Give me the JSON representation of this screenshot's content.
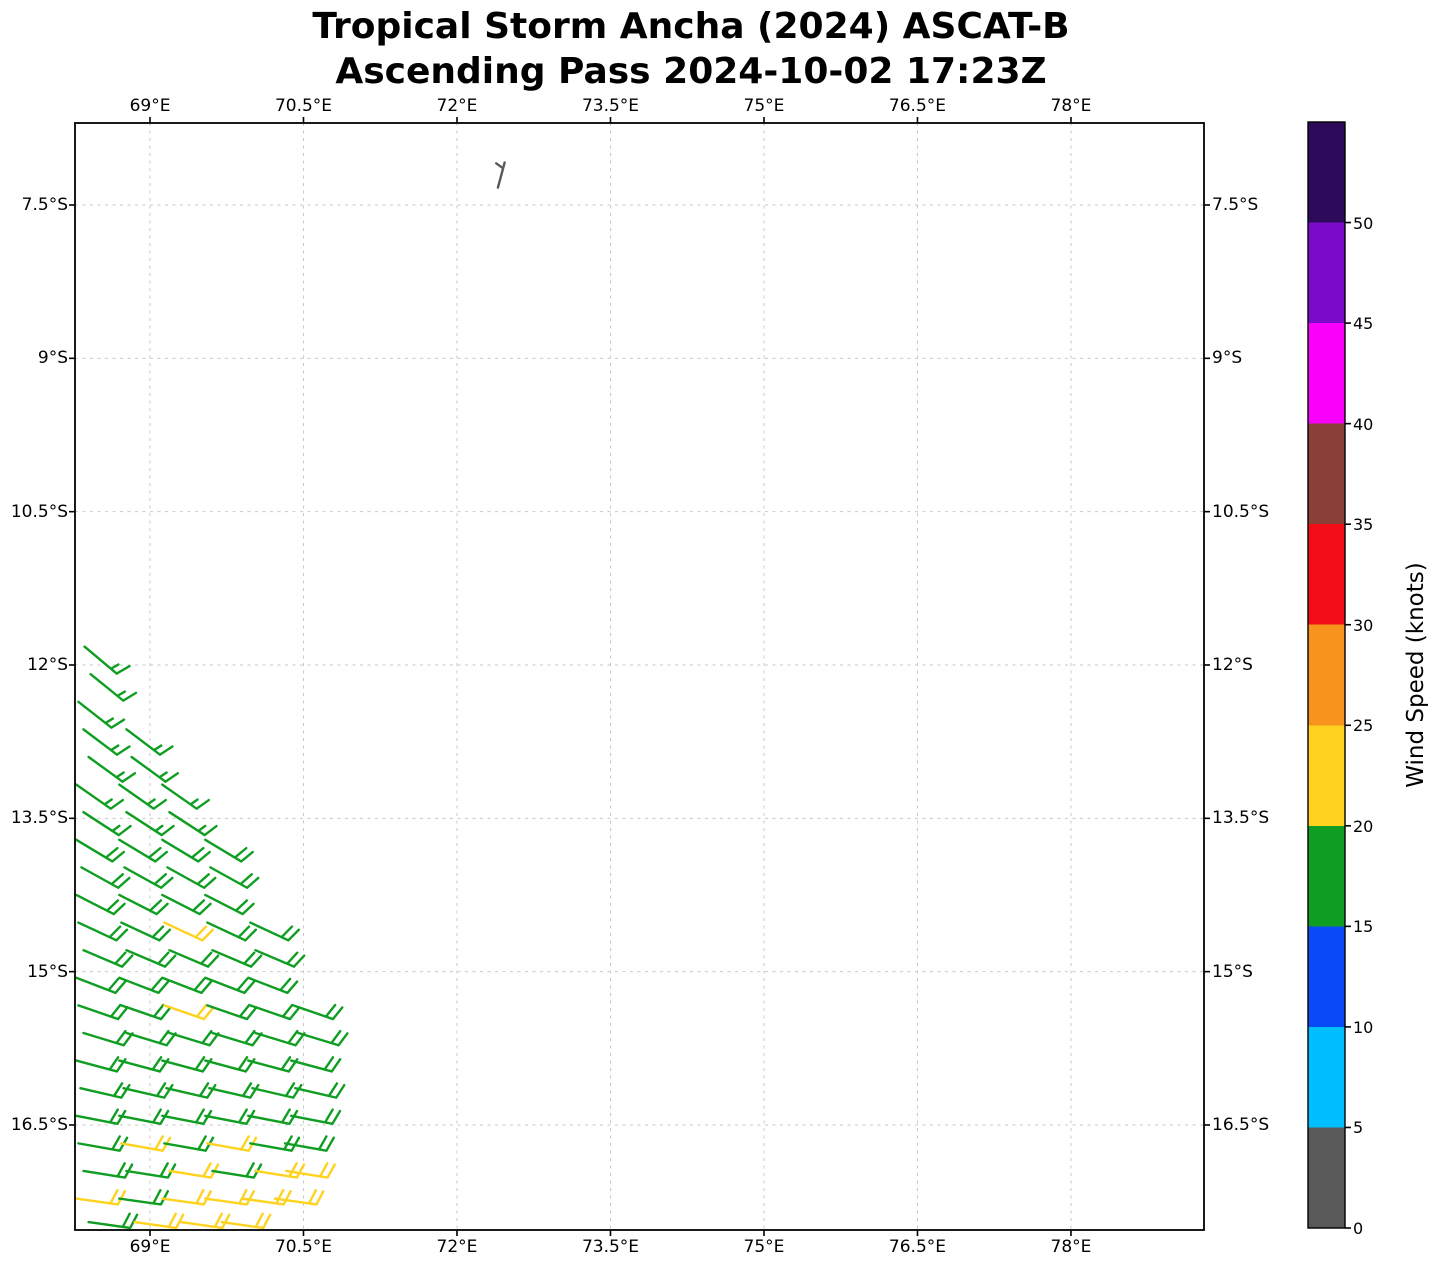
{
  "title": {
    "line1": "Tropical Storm Ancha (2024) ASCAT-B",
    "line2": "Ascending Pass 2024-10-02 17:23Z"
  },
  "axes": {
    "lon_ticks": [
      {
        "label": "69°E",
        "value": 69.0
      },
      {
        "label": "70.5°E",
        "value": 70.5
      },
      {
        "label": "72°E",
        "value": 72.0
      },
      {
        "label": "73.5°E",
        "value": 73.5
      },
      {
        "label": "75°E",
        "value": 75.0
      },
      {
        "label": "76.5°E",
        "value": 76.5
      },
      {
        "label": "78°E",
        "value": 78.0
      }
    ],
    "lat_ticks": [
      {
        "label": "7.5°S",
        "value": 7.5
      },
      {
        "label": "9°S",
        "value": 9.0
      },
      {
        "label": "10.5°S",
        "value": 10.5
      },
      {
        "label": "12°S",
        "value": 12.0
      },
      {
        "label": "13.5°S",
        "value": 13.5
      },
      {
        "label": "15°S",
        "value": 15.0
      },
      {
        "label": "16.5°S",
        "value": 16.5
      }
    ],
    "lon_range_e": [
      68.27,
      79.3
    ],
    "lat_range_s": [
      6.7,
      17.53
    ],
    "grid": "dashed light gray"
  },
  "colorbar": {
    "label": "Wind Speed (knots)",
    "ticks": [
      0,
      5,
      10,
      15,
      20,
      25,
      30,
      35,
      40,
      45,
      50
    ],
    "extend_above_max": true,
    "segments": [
      {
        "from": 0,
        "to": 5,
        "color": "#595959"
      },
      {
        "from": 5,
        "to": 10,
        "color": "#00bfff"
      },
      {
        "from": 10,
        "to": 15,
        "color": "#0b4af7"
      },
      {
        "from": 15,
        "to": 20,
        "color": "#0f9e22"
      },
      {
        "from": 20,
        "to": 25,
        "color": "#ffd21f"
      },
      {
        "from": 25,
        "to": 30,
        "color": "#f8941d"
      },
      {
        "from": 30,
        "to": 35,
        "color": "#f20d18"
      },
      {
        "from": 35,
        "to": 40,
        "color": "#8b4138"
      },
      {
        "from": 40,
        "to": 45,
        "color": "#fa00fa"
      },
      {
        "from": 45,
        "to": 50,
        "color": "#7a0bc8"
      },
      {
        "from": 50,
        "to": 55,
        "color": "#2e0a5c"
      }
    ]
  },
  "chart_data": {
    "type": "wind_barbs",
    "units": "knots",
    "notes": "Scatterometer wind barbs; cluster of 15-25 kt winds in the SW corner of the domain, one weak (<5 kt) barb near 72.4E 7.3S. Barb format: [lon_deg_E, lat_deg_S, staff_rotation_deg_cw, speed_knots, optional_staff_len_px]",
    "barb_format": [
      "lon_e",
      "lat_s",
      "dir_deg",
      "spd_kt",
      "len_px_optional"
    ],
    "barbs": [
      [
        72.4,
        7.33,
        -75,
        4,
        26
      ],
      [
        68.36,
        11.82,
        40,
        16
      ],
      [
        68.42,
        12.09,
        39,
        16
      ],
      [
        68.3,
        12.36,
        38,
        16
      ],
      [
        68.35,
        12.63,
        37,
        16
      ],
      [
        68.77,
        12.63,
        37,
        16
      ],
      [
        68.4,
        12.9,
        36,
        16
      ],
      [
        68.82,
        12.9,
        36,
        16
      ],
      [
        68.28,
        13.17,
        35,
        16
      ],
      [
        68.7,
        13.17,
        35,
        16
      ],
      [
        69.12,
        13.17,
        35,
        16
      ],
      [
        68.35,
        13.44,
        33,
        16
      ],
      [
        68.77,
        13.44,
        33,
        16
      ],
      [
        69.19,
        13.44,
        33,
        16
      ],
      [
        68.28,
        13.71,
        31,
        18
      ],
      [
        68.7,
        13.71,
        31,
        18
      ],
      [
        69.12,
        13.71,
        31,
        18
      ],
      [
        69.54,
        13.71,
        31,
        18
      ],
      [
        68.33,
        13.98,
        29,
        18
      ],
      [
        68.75,
        13.98,
        29,
        18
      ],
      [
        69.17,
        13.98,
        29,
        18
      ],
      [
        69.59,
        13.98,
        29,
        18
      ],
      [
        68.28,
        14.25,
        27,
        18
      ],
      [
        68.7,
        14.25,
        27,
        18
      ],
      [
        69.12,
        14.25,
        27,
        18
      ],
      [
        69.54,
        14.25,
        27,
        18
      ],
      [
        68.3,
        14.52,
        25,
        18
      ],
      [
        68.72,
        14.52,
        25,
        18
      ],
      [
        69.14,
        14.52,
        25,
        21
      ],
      [
        69.56,
        14.52,
        25,
        18
      ],
      [
        69.98,
        14.52,
        25,
        18
      ],
      [
        68.35,
        14.79,
        23,
        18
      ],
      [
        68.77,
        14.79,
        23,
        18
      ],
      [
        69.19,
        14.79,
        23,
        18
      ],
      [
        69.61,
        14.79,
        23,
        18
      ],
      [
        70.03,
        14.79,
        23,
        18
      ],
      [
        68.28,
        15.06,
        21,
        18
      ],
      [
        68.7,
        15.06,
        21,
        18
      ],
      [
        69.12,
        15.06,
        21,
        18
      ],
      [
        69.54,
        15.06,
        21,
        18
      ],
      [
        69.96,
        15.06,
        21,
        18
      ],
      [
        68.3,
        15.33,
        19,
        18
      ],
      [
        68.72,
        15.33,
        19,
        18
      ],
      [
        69.14,
        15.33,
        19,
        21
      ],
      [
        69.56,
        15.33,
        19,
        18
      ],
      [
        69.98,
        15.33,
        19,
        18
      ],
      [
        70.4,
        15.33,
        19,
        18
      ],
      [
        68.35,
        15.6,
        17,
        18
      ],
      [
        68.77,
        15.6,
        17,
        18
      ],
      [
        69.19,
        15.6,
        17,
        18
      ],
      [
        69.61,
        15.6,
        17,
        18
      ],
      [
        70.03,
        15.6,
        17,
        18
      ],
      [
        70.45,
        15.6,
        17,
        18
      ],
      [
        68.28,
        15.87,
        15,
        18
      ],
      [
        68.7,
        15.87,
        15,
        18
      ],
      [
        69.12,
        15.87,
        15,
        18
      ],
      [
        69.54,
        15.87,
        15,
        18
      ],
      [
        69.96,
        15.87,
        15,
        18
      ],
      [
        70.38,
        15.87,
        15,
        18
      ],
      [
        68.32,
        16.14,
        13,
        18
      ],
      [
        68.74,
        16.14,
        13,
        18
      ],
      [
        69.16,
        16.14,
        13,
        18
      ],
      [
        69.58,
        16.14,
        13,
        18
      ],
      [
        70.0,
        16.14,
        13,
        18
      ],
      [
        70.42,
        16.14,
        13,
        18
      ],
      [
        68.28,
        16.41,
        11,
        18
      ],
      [
        68.7,
        16.41,
        11,
        18
      ],
      [
        69.12,
        16.41,
        11,
        18
      ],
      [
        69.54,
        16.41,
        11,
        18
      ],
      [
        69.96,
        16.41,
        11,
        18
      ],
      [
        70.38,
        16.41,
        11,
        18
      ],
      [
        68.3,
        16.68,
        10,
        18
      ],
      [
        68.72,
        16.68,
        10,
        21
      ],
      [
        69.14,
        16.68,
        10,
        18
      ],
      [
        69.56,
        16.68,
        10,
        21
      ],
      [
        69.98,
        16.68,
        10,
        18
      ],
      [
        70.32,
        16.68,
        10,
        18
      ],
      [
        68.35,
        16.95,
        9,
        18
      ],
      [
        68.77,
        16.95,
        9,
        18
      ],
      [
        69.19,
        16.95,
        9,
        21
      ],
      [
        69.61,
        16.95,
        9,
        18
      ],
      [
        70.03,
        16.95,
        9,
        21
      ],
      [
        70.33,
        16.95,
        9,
        21
      ],
      [
        68.28,
        17.22,
        8,
        21
      ],
      [
        68.7,
        17.22,
        8,
        18
      ],
      [
        69.12,
        17.22,
        8,
        21
      ],
      [
        69.54,
        17.22,
        8,
        21
      ],
      [
        69.9,
        17.22,
        8,
        21
      ],
      [
        70.22,
        17.22,
        8,
        21
      ],
      [
        68.4,
        17.45,
        8,
        18
      ],
      [
        68.85,
        17.45,
        8,
        21
      ],
      [
        69.3,
        17.45,
        8,
        21
      ],
      [
        69.7,
        17.45,
        8,
        21
      ]
    ]
  }
}
